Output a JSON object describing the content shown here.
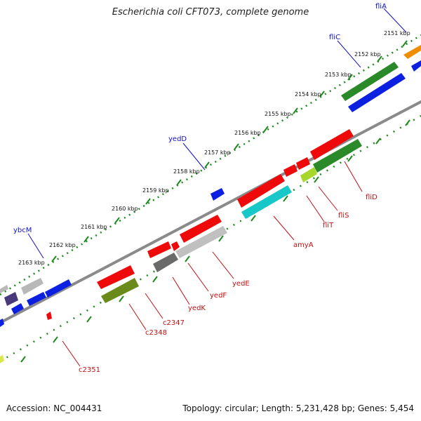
{
  "title": "Escherichia coli CFT073, complete genome",
  "footer": {
    "accession_label": "Accession: NC_004431",
    "topology_label": "Topology: circular; Length: 5,231,428 bp; Genes: 5,454"
  },
  "colors": {
    "backbone": "#7a7a7a",
    "tick": "#1e8a1e",
    "forward_label": "#1010c0",
    "reverse_label": "#c01010"
  },
  "ticks": [
    {
      "label": "2151 kbp"
    },
    {
      "label": "2152 kbp"
    },
    {
      "label": "2153 kbp"
    },
    {
      "label": "2154 kbp"
    },
    {
      "label": "2155 kbp"
    },
    {
      "label": "2156 kbp"
    },
    {
      "label": "2157 kbp"
    },
    {
      "label": "2158 kbp"
    },
    {
      "label": "2159 kbp"
    },
    {
      "label": "2160 kbp"
    },
    {
      "label": "2161 kbp"
    },
    {
      "label": "2162 kbp"
    },
    {
      "label": "2163 kbp"
    }
  ],
  "gene_labels": [
    {
      "text": "fliA",
      "strand": "forward"
    },
    {
      "text": "fliC",
      "strand": "forward"
    },
    {
      "text": "yedD",
      "strand": "forward"
    },
    {
      "text": "ybcM",
      "strand": "forward"
    },
    {
      "text": "fliD",
      "strand": "reverse"
    },
    {
      "text": "fliS",
      "strand": "reverse"
    },
    {
      "text": "fliT",
      "strand": "reverse"
    },
    {
      "text": "amyA",
      "strand": "reverse"
    },
    {
      "text": "yedE",
      "strand": "reverse"
    },
    {
      "text": "yedF",
      "strand": "reverse"
    },
    {
      "text": "yedK",
      "strand": "reverse"
    },
    {
      "text": "c2347",
      "strand": "reverse"
    },
    {
      "text": "c2348",
      "strand": "reverse"
    },
    {
      "text": "c2351",
      "strand": "reverse"
    }
  ]
}
